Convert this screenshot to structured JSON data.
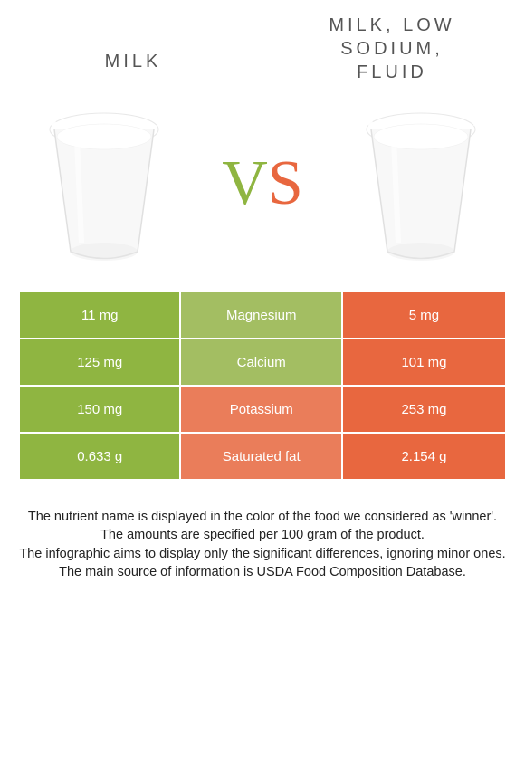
{
  "colors": {
    "green": "#8fb541",
    "green_mid": "#a3be62",
    "orange": "#e8673f",
    "orange_mid": "#ea7d5a",
    "white": "#ffffff",
    "text_dark": "#333333"
  },
  "header": {
    "left_title": "MILK",
    "right_title_line1": "MILK, LOW",
    "right_title_line2": "SODIUM,",
    "right_title_line3": "FLUID"
  },
  "vs": {
    "v": "V",
    "s": "S"
  },
  "rows": [
    {
      "left": "11 mg",
      "mid": "Magnesium",
      "right": "5 mg",
      "winner": "left"
    },
    {
      "left": "125 mg",
      "mid": "Calcium",
      "right": "101 mg",
      "winner": "left"
    },
    {
      "left": "150 mg",
      "mid": "Potassium",
      "right": "253 mg",
      "winner": "right"
    },
    {
      "left": "0.633 g",
      "mid": "Saturated fat",
      "right": "2.154 g",
      "winner": "right"
    }
  ],
  "footer": {
    "p1": "The nutrient name is displayed in the color of the food we considered as 'winner'.",
    "p2": "The amounts are specified per 100 gram of the product.",
    "p3": "The infographic aims to display only the significant differences, ignoring minor ones.",
    "p4": "The main source of information is USDA Food Composition Database."
  }
}
